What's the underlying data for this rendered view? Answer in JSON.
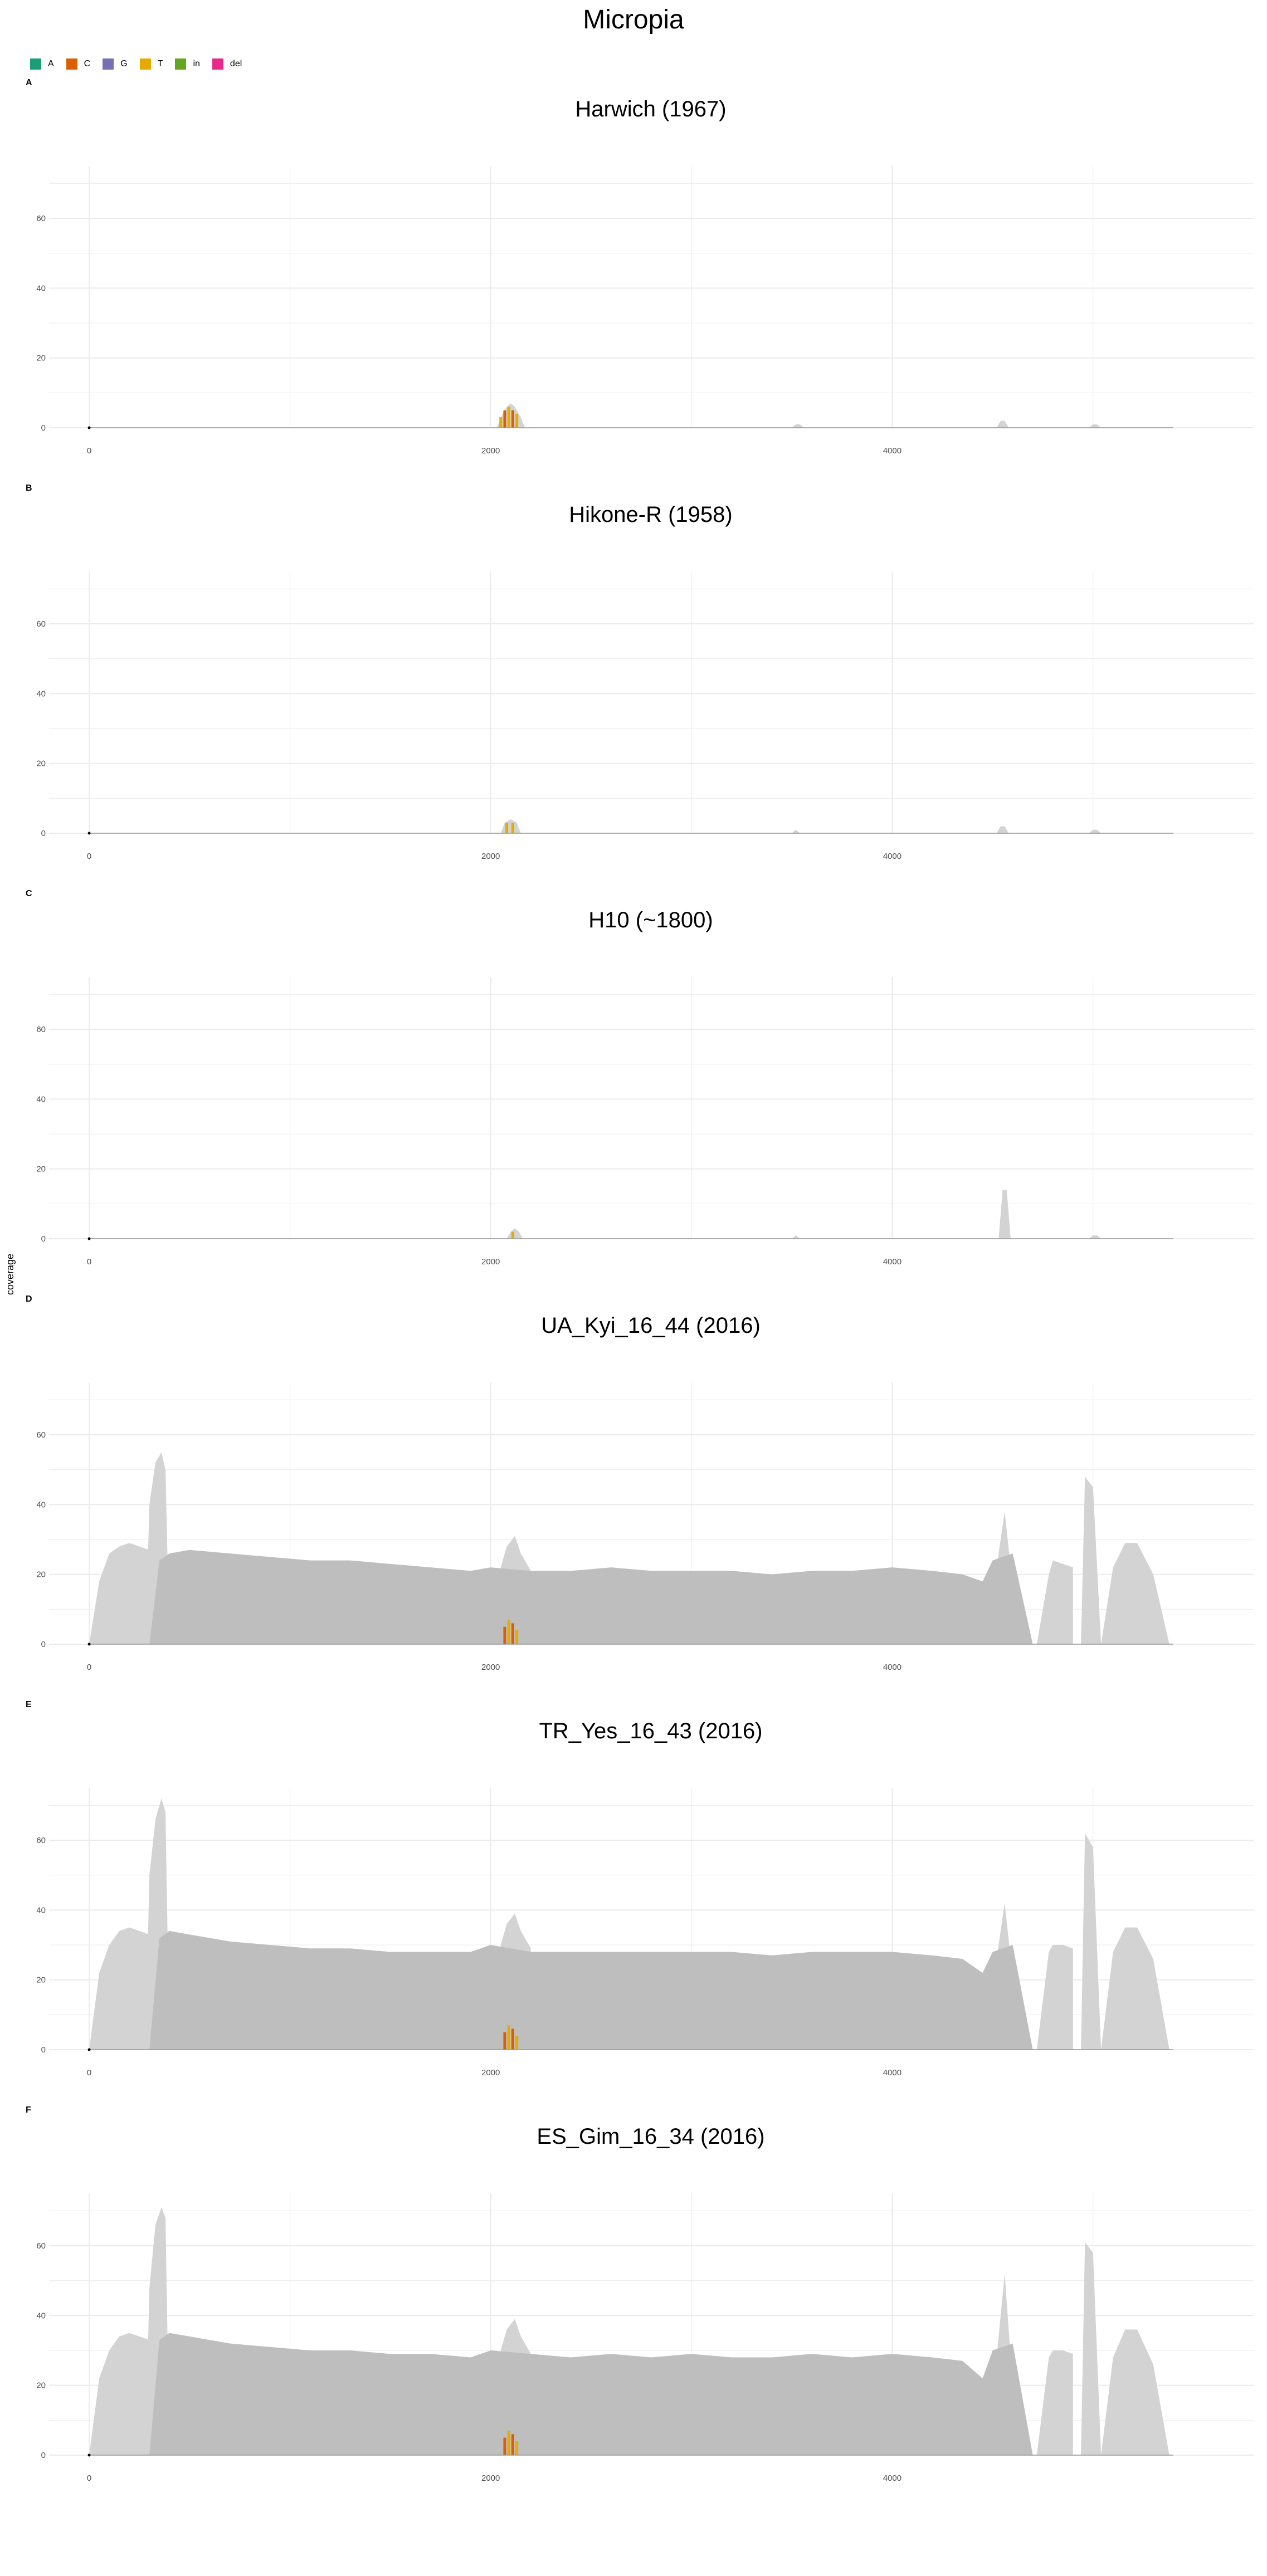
{
  "figure": {
    "title": "Micropia",
    "ylabel": "coverage"
  },
  "legend": [
    {
      "label": "A",
      "color": "#1B9E77"
    },
    {
      "label": "C",
      "color": "#D95F02"
    },
    {
      "label": "G",
      "color": "#7570B3"
    },
    {
      "label": "T",
      "color": "#E6AB02"
    },
    {
      "label": "in",
      "color": "#66A61E"
    },
    {
      "label": "del",
      "color": "#E7298A"
    }
  ],
  "colors": {
    "coverage_main": "#BEBEBE",
    "coverage_light": "#D3D3D3",
    "grid": "#EBEBEB",
    "split_read_line": "#555555"
  },
  "chart_data": [
    {
      "type": "area",
      "panel": "A",
      "title": "Harwich (1967)",
      "xlabel": "",
      "ylabel": "coverage",
      "xlim": [
        -200,
        5800
      ],
      "ylim": [
        0,
        75
      ],
      "x_ticks": [
        0,
        2000,
        4000
      ],
      "y_ticks": [
        0,
        20,
        40,
        60
      ],
      "grid": true,
      "coverage_regions": [
        {
          "x": [
            2030,
            2060,
            2080,
            2100,
            2120,
            2150,
            2170
          ],
          "y": [
            0,
            4,
            6,
            7,
            6,
            3,
            0
          ]
        },
        {
          "x": [
            3500,
            3520,
            3540,
            3560
          ],
          "y": [
            0,
            1,
            1,
            0
          ]
        },
        {
          "x": [
            4520,
            4540,
            4560,
            4580
          ],
          "y": [
            0,
            2,
            2,
            0
          ]
        },
        {
          "x": [
            4980,
            5000,
            5020,
            5040
          ],
          "y": [
            0,
            1,
            1,
            0
          ]
        }
      ],
      "snp_bars": [
        {
          "x": 2050,
          "y": 3,
          "base": "T"
        },
        {
          "x": 2070,
          "y": 5,
          "base": "C"
        },
        {
          "x": 2090,
          "y": 6,
          "base": "T"
        },
        {
          "x": 2110,
          "y": 5,
          "base": "C"
        },
        {
          "x": 2130,
          "y": 4,
          "base": "T"
        }
      ]
    },
    {
      "type": "area",
      "panel": "B",
      "title": "Hikone-R (1958)",
      "xlabel": "",
      "ylabel": "coverage",
      "xlim": [
        -200,
        5800
      ],
      "ylim": [
        0,
        75
      ],
      "x_ticks": [
        0,
        2000,
        4000
      ],
      "y_ticks": [
        0,
        20,
        40,
        60
      ],
      "grid": true,
      "coverage_regions": [
        {
          "x": [
            2050,
            2070,
            2100,
            2130,
            2150
          ],
          "y": [
            0,
            3,
            4,
            3,
            0
          ]
        },
        {
          "x": [
            3500,
            3520,
            3540
          ],
          "y": [
            0,
            1,
            0
          ]
        },
        {
          "x": [
            4520,
            4540,
            4560,
            4580
          ],
          "y": [
            0,
            2,
            2,
            0
          ]
        },
        {
          "x": [
            4980,
            5000,
            5020,
            5040
          ],
          "y": [
            0,
            1,
            1,
            0
          ]
        }
      ],
      "snp_bars": [
        {
          "x": 2080,
          "y": 3,
          "base": "T"
        },
        {
          "x": 2110,
          "y": 3,
          "base": "T"
        }
      ]
    },
    {
      "type": "area",
      "panel": "C",
      "title": "H10 (~1800)",
      "xlabel": "",
      "ylabel": "coverage",
      "xlim": [
        -200,
        5800
      ],
      "ylim": [
        0,
        75
      ],
      "x_ticks": [
        0,
        2000,
        4000
      ],
      "y_ticks": [
        0,
        20,
        40,
        60
      ],
      "grid": true,
      "coverage_regions": [
        {
          "x": [
            2080,
            2100,
            2120,
            2140,
            2160
          ],
          "y": [
            0,
            2,
            3,
            2,
            0
          ]
        },
        {
          "x": [
            3500,
            3520,
            3540
          ],
          "y": [
            0,
            1,
            0
          ]
        },
        {
          "x": [
            4530,
            4550,
            4570,
            4590
          ],
          "y": [
            0,
            14,
            14,
            0
          ]
        },
        {
          "x": [
            4980,
            5000,
            5020,
            5040
          ],
          "y": [
            0,
            1,
            1,
            0
          ]
        }
      ],
      "snp_bars": [
        {
          "x": 2110,
          "y": 2,
          "base": "T"
        }
      ]
    },
    {
      "type": "area",
      "panel": "D",
      "title": "UA_Kyi_16_44 (2016)",
      "xlabel": "",
      "ylabel": "coverage",
      "xlim": [
        -200,
        5800
      ],
      "ylim": [
        0,
        75
      ],
      "x_ticks": [
        0,
        2000,
        4000
      ],
      "y_ticks": [
        0,
        20,
        40,
        60
      ],
      "grid": true,
      "coverage_main": {
        "x": [
          300,
          350,
          400,
          500,
          700,
          900,
          1100,
          1300,
          1500,
          1700,
          1900,
          2000,
          2200,
          2400,
          2600,
          2800,
          3000,
          3200,
          3400,
          3600,
          3800,
          4000,
          4200,
          4350,
          4450,
          4500,
          4600,
          4700
        ],
        "y": [
          0,
          24,
          26,
          27,
          26,
          25,
          24,
          24,
          23,
          22,
          21,
          22,
          21,
          21,
          22,
          21,
          21,
          21,
          20,
          21,
          21,
          22,
          21,
          20,
          18,
          24,
          26,
          0
        ]
      },
      "coverage_light": [
        {
          "x": [
            0,
            50,
            100,
            150,
            200,
            250,
            300
          ],
          "y": [
            0,
            18,
            26,
            28,
            29,
            28,
            27
          ]
        },
        {
          "x": [
            280,
            300,
            330,
            360,
            380,
            400
          ],
          "y": [
            0,
            40,
            52,
            55,
            50,
            0
          ]
        },
        {
          "x": [
            2050,
            2080,
            2120,
            2150,
            2200
          ],
          "y": [
            22,
            28,
            31,
            26,
            21
          ]
        },
        {
          "x": [
            4520,
            4560,
            4590
          ],
          "y": [
            22,
            38,
            22
          ]
        },
        {
          "x": [
            4720,
            4780,
            4800,
            4850,
            4900
          ],
          "y": [
            0,
            20,
            24,
            23,
            22
          ]
        },
        {
          "x": [
            4940,
            4960,
            5000,
            5040
          ],
          "y": [
            0,
            48,
            45,
            0
          ]
        },
        {
          "x": [
            5040,
            5100,
            5160,
            5220,
            5300,
            5380
          ],
          "y": [
            0,
            22,
            29,
            29,
            20,
            0
          ]
        }
      ],
      "snp_bars": [
        {
          "x": 2070,
          "y": 5,
          "base": "C"
        },
        {
          "x": 2090,
          "y": 7,
          "base": "T"
        },
        {
          "x": 2110,
          "y": 6,
          "base": "C"
        },
        {
          "x": 2130,
          "y": 4,
          "base": "T"
        }
      ]
    },
    {
      "type": "area",
      "panel": "E",
      "title": "TR_Yes_16_43 (2016)",
      "xlabel": "",
      "ylabel": "coverage",
      "xlim": [
        -200,
        5800
      ],
      "ylim": [
        0,
        75
      ],
      "x_ticks": [
        0,
        2000,
        4000
      ],
      "y_ticks": [
        0,
        20,
        40,
        60
      ],
      "grid": true,
      "coverage_main": {
        "x": [
          300,
          350,
          400,
          500,
          700,
          900,
          1100,
          1300,
          1500,
          1700,
          1900,
          2000,
          2200,
          2400,
          2600,
          2800,
          3000,
          3200,
          3400,
          3600,
          3800,
          4000,
          4200,
          4350,
          4450,
          4500,
          4600,
          4700
        ],
        "y": [
          0,
          32,
          34,
          33,
          31,
          30,
          29,
          29,
          28,
          28,
          28,
          30,
          28,
          28,
          28,
          28,
          28,
          28,
          27,
          28,
          28,
          28,
          27,
          26,
          22,
          28,
          30,
          0
        ]
      },
      "coverage_light": [
        {
          "x": [
            0,
            50,
            100,
            150,
            200,
            250,
            300
          ],
          "y": [
            0,
            22,
            30,
            34,
            35,
            34,
            33
          ]
        },
        {
          "x": [
            280,
            300,
            330,
            360,
            380,
            400
          ],
          "y": [
            0,
            50,
            66,
            72,
            68,
            0
          ]
        },
        {
          "x": [
            2050,
            2080,
            2120,
            2150,
            2200
          ],
          "y": [
            30,
            36,
            39,
            34,
            29
          ]
        },
        {
          "x": [
            4520,
            4560,
            4590
          ],
          "y": [
            26,
            42,
            26
          ]
        },
        {
          "x": [
            4720,
            4780,
            4800,
            4850,
            4900
          ],
          "y": [
            0,
            28,
            30,
            30,
            29
          ]
        },
        {
          "x": [
            4940,
            4960,
            5000,
            5040
          ],
          "y": [
            0,
            62,
            58,
            0
          ]
        },
        {
          "x": [
            5040,
            5100,
            5160,
            5220,
            5300,
            5380
          ],
          "y": [
            0,
            28,
            35,
            35,
            26,
            0
          ]
        }
      ],
      "snp_bars": [
        {
          "x": 2070,
          "y": 5,
          "base": "C"
        },
        {
          "x": 2090,
          "y": 7,
          "base": "T"
        },
        {
          "x": 2110,
          "y": 6,
          "base": "C"
        },
        {
          "x": 2130,
          "y": 4,
          "base": "T"
        }
      ]
    },
    {
      "type": "area",
      "panel": "F",
      "title": "ES_Gim_16_34 (2016)",
      "xlabel": "",
      "ylabel": "coverage",
      "xlim": [
        -200,
        5800
      ],
      "ylim": [
        0,
        75
      ],
      "x_ticks": [
        0,
        2000,
        4000
      ],
      "y_ticks": [
        0,
        20,
        40,
        60
      ],
      "grid": true,
      "coverage_main": {
        "x": [
          300,
          350,
          400,
          500,
          700,
          900,
          1100,
          1300,
          1500,
          1700,
          1900,
          2000,
          2200,
          2400,
          2600,
          2800,
          3000,
          3200,
          3400,
          3600,
          3800,
          4000,
          4200,
          4350,
          4450,
          4500,
          4600,
          4700
        ],
        "y": [
          0,
          33,
          35,
          34,
          32,
          31,
          30,
          30,
          29,
          29,
          28,
          30,
          29,
          28,
          29,
          28,
          29,
          28,
          28,
          29,
          28,
          29,
          28,
          27,
          22,
          30,
          32,
          0
        ]
      },
      "coverage_light": [
        {
          "x": [
            0,
            50,
            100,
            150,
            200,
            250,
            300
          ],
          "y": [
            0,
            22,
            30,
            34,
            35,
            34,
            33
          ]
        },
        {
          "x": [
            280,
            300,
            330,
            360,
            380,
            400
          ],
          "y": [
            0,
            48,
            66,
            71,
            68,
            0
          ]
        },
        {
          "x": [
            2050,
            2080,
            2120,
            2150,
            2200
          ],
          "y": [
            30,
            36,
            39,
            34,
            29
          ]
        },
        {
          "x": [
            4520,
            4560,
            4590
          ],
          "y": [
            28,
            52,
            28
          ]
        },
        {
          "x": [
            4720,
            4780,
            4800,
            4850,
            4900
          ],
          "y": [
            0,
            28,
            30,
            30,
            29
          ]
        },
        {
          "x": [
            4940,
            4960,
            5000,
            5040
          ],
          "y": [
            0,
            61,
            58,
            0
          ]
        },
        {
          "x": [
            5040,
            5100,
            5160,
            5220,
            5300,
            5380
          ],
          "y": [
            0,
            28,
            36,
            36,
            26,
            0
          ]
        }
      ],
      "snp_bars": [
        {
          "x": 2070,
          "y": 5,
          "base": "C"
        },
        {
          "x": 2090,
          "y": 7,
          "base": "T"
        },
        {
          "x": 2110,
          "y": 6,
          "base": "C"
        },
        {
          "x": 2130,
          "y": 4,
          "base": "T"
        }
      ]
    }
  ]
}
